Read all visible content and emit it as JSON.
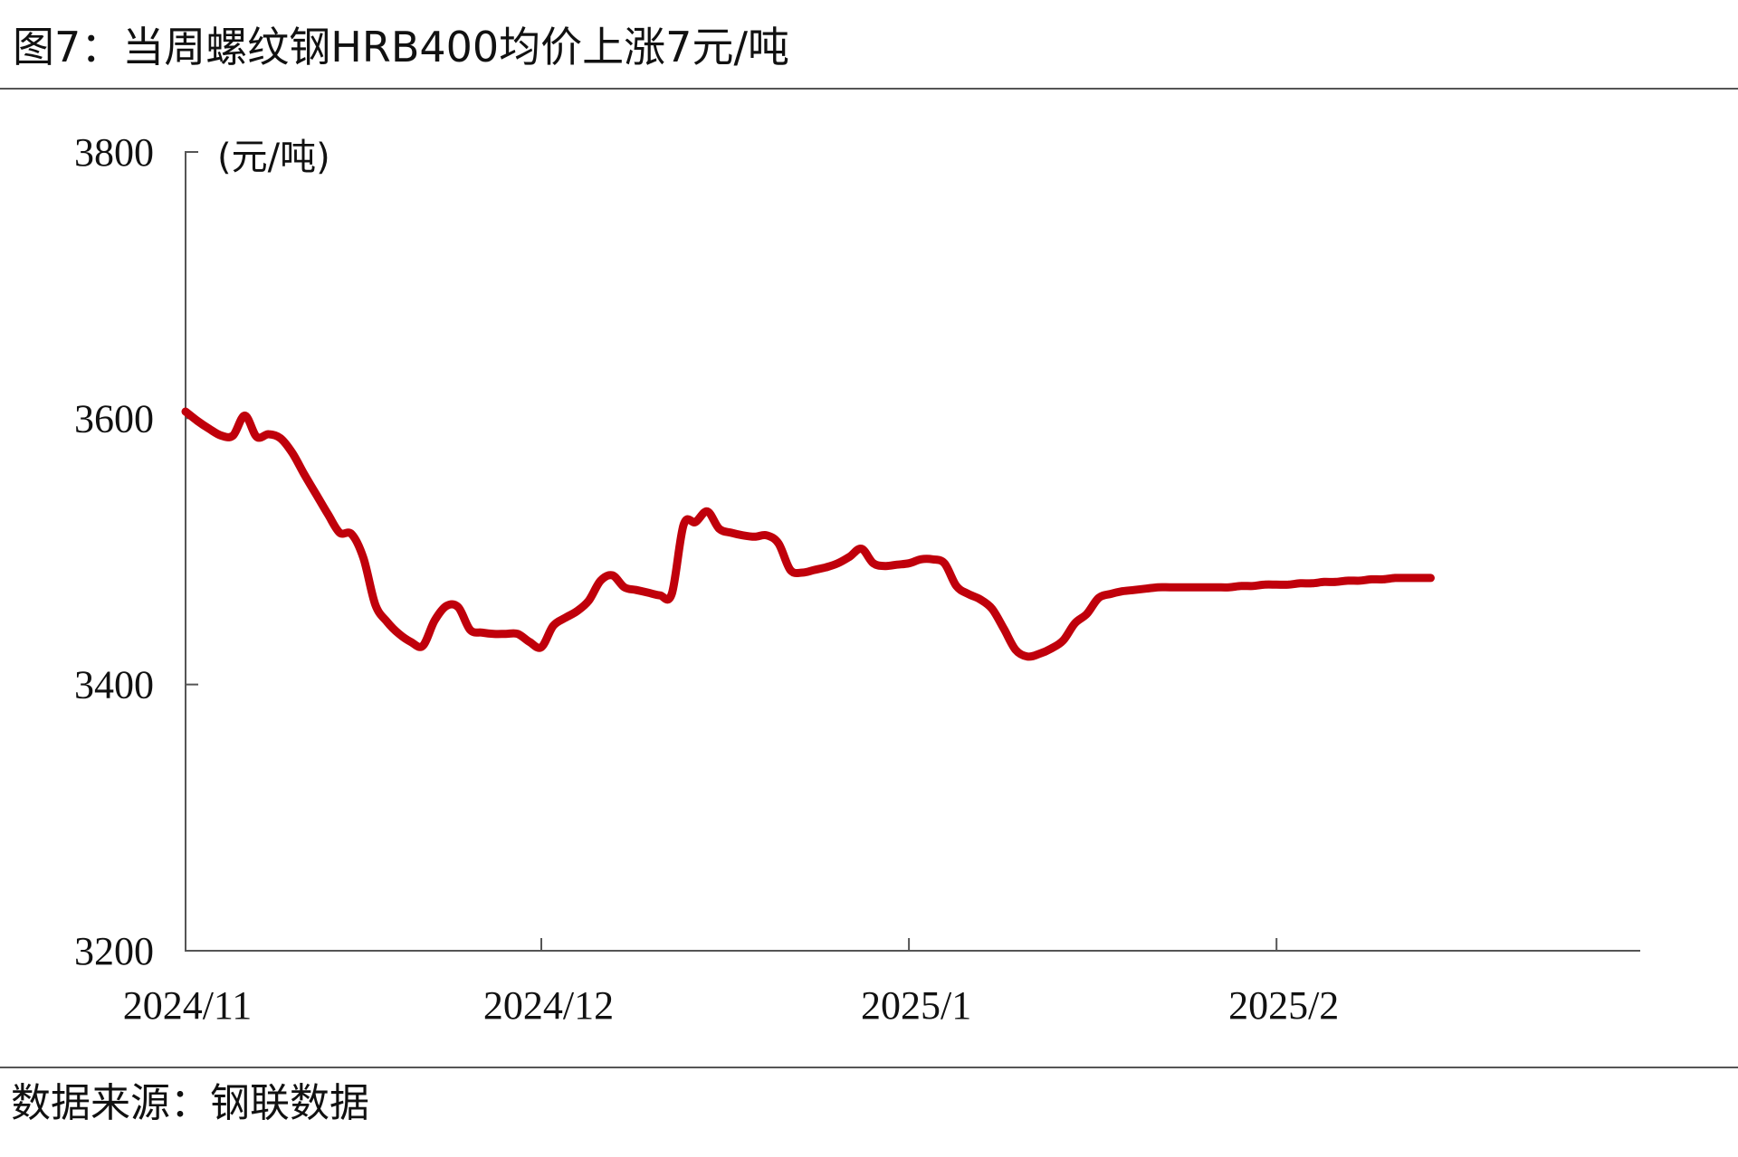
{
  "title": "图7：当周螺纹钢HRB400均价上涨7元/吨",
  "source": "数据来源：钢联数据",
  "colors": {
    "line": "#c0000b",
    "axis": "#555555",
    "rule": "#555555"
  },
  "chart_data": {
    "type": "line",
    "title": "图7：当周螺纹钢HRB400均价上涨7元/吨",
    "ylabel": "(元/吨)",
    "xlabel": "",
    "ylim": [
      3200,
      3800
    ],
    "yticks": [
      3200,
      3400,
      3600,
      3800
    ],
    "xlim": [
      "2024-11-01",
      "2025-02-28"
    ],
    "xticks": [
      {
        "label": "2024/11",
        "date": "2024-11-01"
      },
      {
        "label": "2024/12",
        "date": "2024-12-01"
      },
      {
        "label": "2025/1",
        "date": "2025-01-01"
      },
      {
        "label": "2025/2",
        "date": "2025-02-01"
      }
    ],
    "grid": false,
    "series": [
      {
        "name": "",
        "color": "#c0000b",
        "points": [
          [
            "2024-11-01",
            3605
          ],
          [
            "2024-11-02",
            3598
          ],
          [
            "2024-11-03",
            3592
          ],
          [
            "2024-11-04",
            3587
          ],
          [
            "2024-11-05",
            3587
          ],
          [
            "2024-11-06",
            3602
          ],
          [
            "2024-11-07",
            3586
          ],
          [
            "2024-11-08",
            3588
          ],
          [
            "2024-11-09",
            3585
          ],
          [
            "2024-11-10",
            3574
          ],
          [
            "2024-11-11",
            3558
          ],
          [
            "2024-11-12",
            3543
          ],
          [
            "2024-11-13",
            3528
          ],
          [
            "2024-11-14",
            3514
          ],
          [
            "2024-11-15",
            3513
          ],
          [
            "2024-11-16",
            3495
          ],
          [
            "2024-11-17",
            3460
          ],
          [
            "2024-11-18",
            3447
          ],
          [
            "2024-11-19",
            3438
          ],
          [
            "2024-11-20",
            3432
          ],
          [
            "2024-11-21",
            3429
          ],
          [
            "2024-11-22",
            3448
          ],
          [
            "2024-11-23",
            3459
          ],
          [
            "2024-11-24",
            3458
          ],
          [
            "2024-11-25",
            3441
          ],
          [
            "2024-11-26",
            3439
          ],
          [
            "2024-11-27",
            3438
          ],
          [
            "2024-11-28",
            3438
          ],
          [
            "2024-11-29",
            3438
          ],
          [
            "2024-11-30",
            3432
          ],
          [
            "2024-12-01",
            3428
          ],
          [
            "2024-12-02",
            3444
          ],
          [
            "2024-12-03",
            3450
          ],
          [
            "2024-12-04",
            3455
          ],
          [
            "2024-12-05",
            3463
          ],
          [
            "2024-12-06",
            3478
          ],
          [
            "2024-12-07",
            3482
          ],
          [
            "2024-12-08",
            3473
          ],
          [
            "2024-12-09",
            3471
          ],
          [
            "2024-12-10",
            3469
          ],
          [
            "2024-12-11",
            3467
          ],
          [
            "2024-12-12",
            3468
          ],
          [
            "2024-12-13",
            3520
          ],
          [
            "2024-12-14",
            3522
          ],
          [
            "2024-12-15",
            3530
          ],
          [
            "2024-12-16",
            3517
          ],
          [
            "2024-12-17",
            3514
          ],
          [
            "2024-12-18",
            3512
          ],
          [
            "2024-12-19",
            3511
          ],
          [
            "2024-12-20",
            3512
          ],
          [
            "2024-12-21",
            3506
          ],
          [
            "2024-12-22",
            3486
          ],
          [
            "2024-12-23",
            3484
          ],
          [
            "2024-12-24",
            3486
          ],
          [
            "2024-12-25",
            3488
          ],
          [
            "2024-12-26",
            3491
          ],
          [
            "2024-12-27",
            3496
          ],
          [
            "2024-12-28",
            3502
          ],
          [
            "2024-12-29",
            3491
          ],
          [
            "2024-12-30",
            3489
          ],
          [
            "2024-12-31",
            3490
          ],
          [
            "2025-01-01",
            3491
          ],
          [
            "2025-01-02",
            3494
          ],
          [
            "2025-01-03",
            3494
          ],
          [
            "2025-01-04",
            3491
          ],
          [
            "2025-01-05",
            3474
          ],
          [
            "2025-01-06",
            3468
          ],
          [
            "2025-01-07",
            3464
          ],
          [
            "2025-01-08",
            3457
          ],
          [
            "2025-01-09",
            3442
          ],
          [
            "2025-01-10",
            3426
          ],
          [
            "2025-01-11",
            3421
          ],
          [
            "2025-01-12",
            3423
          ],
          [
            "2025-01-13",
            3427
          ],
          [
            "2025-01-14",
            3433
          ],
          [
            "2025-01-15",
            3446
          ],
          [
            "2025-01-16",
            3453
          ],
          [
            "2025-01-17",
            3465
          ],
          [
            "2025-01-18",
            3468
          ],
          [
            "2025-01-19",
            3470
          ],
          [
            "2025-01-20",
            3471
          ],
          [
            "2025-01-21",
            3472
          ],
          [
            "2025-01-22",
            3473
          ],
          [
            "2025-01-23",
            3473
          ],
          [
            "2025-01-24",
            3473
          ],
          [
            "2025-01-25",
            3473
          ],
          [
            "2025-01-26",
            3473
          ],
          [
            "2025-01-27",
            3473
          ],
          [
            "2025-01-28",
            3473
          ],
          [
            "2025-01-29",
            3474
          ],
          [
            "2025-01-30",
            3474
          ],
          [
            "2025-01-31",
            3475
          ],
          [
            "2025-02-01",
            3475
          ],
          [
            "2025-02-02",
            3475
          ],
          [
            "2025-02-03",
            3476
          ],
          [
            "2025-02-04",
            3476
          ],
          [
            "2025-02-05",
            3477
          ],
          [
            "2025-02-06",
            3477
          ],
          [
            "2025-02-07",
            3478
          ],
          [
            "2025-02-08",
            3478
          ],
          [
            "2025-02-09",
            3479
          ],
          [
            "2025-02-10",
            3479
          ],
          [
            "2025-02-11",
            3480
          ],
          [
            "2025-02-12",
            3480
          ],
          [
            "2025-02-13",
            3480
          ],
          [
            "2025-02-14",
            3480
          ]
        ]
      }
    ]
  }
}
